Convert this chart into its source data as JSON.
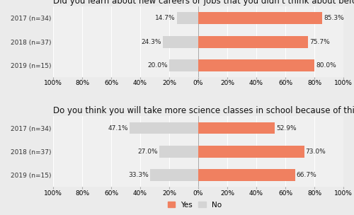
{
  "questions": [
    "Did you learn about new careers or jobs that you didn't think about before?",
    "Do you think you will take more science classes in school because of this course?"
  ],
  "years": [
    "2017 (n=34)",
    "2018 (n=37)",
    "2019 (n=15)"
  ],
  "yes_values": [
    [
      85.3,
      75.7,
      80.0
    ],
    [
      52.9,
      73.0,
      66.7
    ]
  ],
  "no_values": [
    [
      14.7,
      24.3,
      20.0
    ],
    [
      47.1,
      27.0,
      33.3
    ]
  ],
  "yes_color": "#F08060",
  "no_color": "#D4D4D4",
  "fig_bg": "#EBEBEB",
  "panel_bg": "#F0F0F0",
  "grid_color": "#FFFFFF",
  "title_fontsize": 8.5,
  "tick_fontsize": 6.5,
  "label_fontsize": 6.5,
  "year_fontsize": 6.5,
  "legend_fontsize": 7.5,
  "bar_height": 0.5,
  "xlim": [
    -100,
    100
  ],
  "xticks": [
    -100,
    -80,
    -60,
    -40,
    -20,
    0,
    20,
    40,
    60,
    80,
    100
  ]
}
